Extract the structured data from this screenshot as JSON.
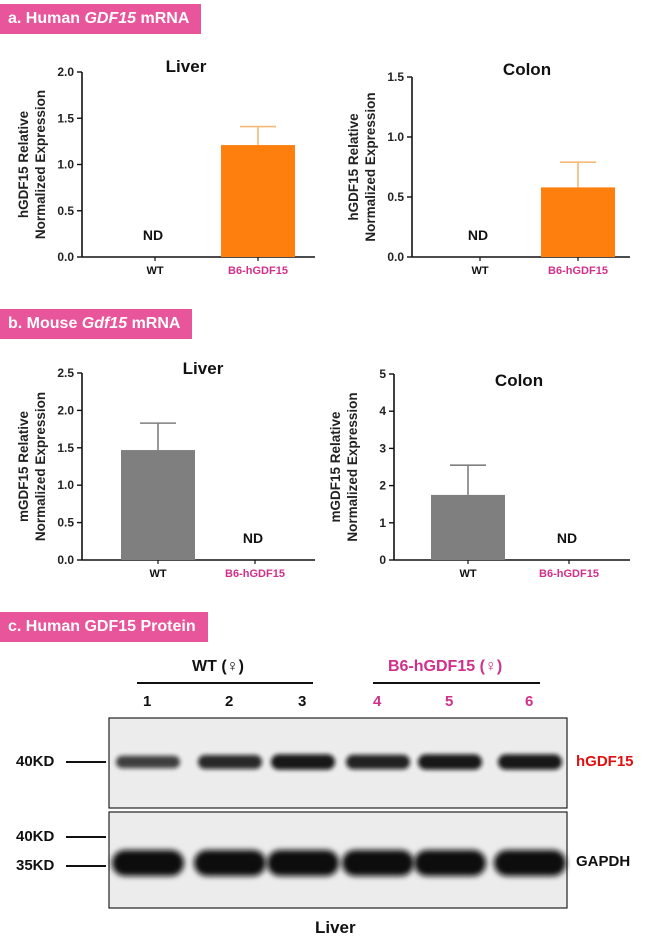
{
  "sections": {
    "a": {
      "prefix": "a. Human ",
      "gene": "GDF15",
      "suffix": " mRNA"
    },
    "b": {
      "prefix": "b. Mouse ",
      "gene": "Gdf15",
      "suffix": " mRNA"
    },
    "c": {
      "label": "c. Human GDF15 Protein"
    }
  },
  "colors": {
    "label_bg": "#e8559a",
    "wt_bar": "#7f7f7f",
    "hgdf_bar": "#ff7f0e",
    "error_bar": "#f5b978",
    "pink_text": "#d0308a",
    "red_text": "#e01010"
  },
  "chart_data": [
    {
      "type": "bar",
      "title": "Liver",
      "ylabel": "hGDF15 Relative Normalized Expression",
      "ylim": [
        0,
        2.0
      ],
      "yticks": [
        "0.0",
        "0.5",
        "1.0",
        "1.5",
        "2.0"
      ],
      "categories": [
        "WT",
        "B6-hGDF15"
      ],
      "values": [
        null,
        1.21
      ],
      "errors": [
        null,
        0.2
      ],
      "annotations": [
        "ND",
        ""
      ]
    },
    {
      "type": "bar",
      "title": "Colon",
      "ylabel": "hGDF15 Relative Normalized Expression",
      "ylim": [
        0,
        1.5
      ],
      "yticks": [
        "0.0",
        "0.5",
        "1.0",
        "1.5"
      ],
      "categories": [
        "WT",
        "B6-hGDF15"
      ],
      "values": [
        null,
        0.58
      ],
      "errors": [
        null,
        0.21
      ],
      "annotations": [
        "ND",
        ""
      ]
    },
    {
      "type": "bar",
      "title": "Liver",
      "ylabel": "mGDF15 Relative Normalized Expression",
      "ylim": [
        0,
        2.5
      ],
      "yticks": [
        "0.0",
        "0.5",
        "1.0",
        "1.5",
        "2.0",
        "2.5"
      ],
      "categories": [
        "WT",
        "B6-hGDF15"
      ],
      "values": [
        1.47,
        null
      ],
      "errors": [
        0.36,
        null
      ],
      "annotations": [
        "",
        "ND"
      ]
    },
    {
      "type": "bar",
      "title": "Colon",
      "ylabel": "mGDF15 Relative Normalized Expression",
      "ylim": [
        0,
        5
      ],
      "yticks": [
        "0",
        "1",
        "2",
        "3",
        "4",
        "5"
      ],
      "categories": [
        "WT",
        "B6-hGDF15"
      ],
      "values": [
        1.75,
        null
      ],
      "errors": [
        0.8,
        null
      ],
      "annotations": [
        "",
        "ND"
      ]
    }
  ],
  "western": {
    "wt_group": "WT (♀)",
    "hgdf_group": "B6-hGDF15 (♀)",
    "lanes": [
      "1",
      "2",
      "3",
      "4",
      "5",
      "6"
    ],
    "markers_top": [
      "40KD"
    ],
    "markers_bottom": [
      "40KD",
      "35KD"
    ],
    "band_top": "hGDF15",
    "band_bottom": "GAPDH",
    "tissue": "Liver",
    "hgdf15_intensity": [
      0.55,
      0.75,
      0.9,
      0.8,
      0.9,
      0.9
    ]
  }
}
